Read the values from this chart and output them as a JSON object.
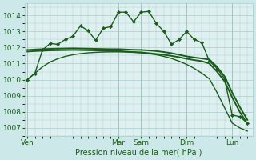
{
  "background_color": "#cce8e8",
  "plot_bg_color": "#dff0f0",
  "grid_color": "#aacccc",
  "line_color": "#1a5c1a",
  "title": "Pression niveau de la mer( hPa )",
  "tick_fontsize": 6.5,
  "xlabel_fontsize": 7,
  "ylim": [
    1006.5,
    1014.75
  ],
  "yticks": [
    1007,
    1008,
    1009,
    1010,
    1011,
    1012,
    1013,
    1014
  ],
  "xlim": [
    -0.3,
    29.7
  ],
  "day_labels": [
    "Ven",
    "Mar",
    "Sam",
    "Dim",
    "Lun"
  ],
  "day_positions": [
    0,
    12,
    15,
    21,
    27
  ],
  "vline_color": "#667766",
  "series": [
    {
      "x": [
        0,
        1,
        2,
        3,
        4,
        5,
        6,
        7,
        8,
        9,
        10,
        11,
        12,
        13,
        14,
        15,
        16,
        17,
        18,
        19,
        20,
        21,
        22,
        23,
        24,
        25,
        26,
        27,
        28,
        29
      ],
      "y": [
        1010.0,
        1010.4,
        1011.85,
        1012.25,
        1012.2,
        1012.5,
        1012.7,
        1013.35,
        1013.05,
        1012.45,
        1013.2,
        1013.3,
        1014.2,
        1014.2,
        1013.6,
        1014.2,
        1014.25,
        1013.5,
        1013.0,
        1012.2,
        1012.5,
        1013.0,
        1012.5,
        1012.3,
        1011.15,
        1010.7,
        1010.05,
        1007.8,
        1007.7,
        1007.3
      ],
      "marker": "D",
      "markersize": 2.2,
      "lw": 1.0
    },
    {
      "x": [
        0,
        1,
        2,
        3,
        4,
        5,
        6,
        7,
        8,
        9,
        10,
        11,
        12,
        13,
        14,
        15,
        16,
        17,
        18,
        19,
        20,
        21,
        22,
        23,
        24,
        25,
        26,
        27,
        28,
        29
      ],
      "y": [
        1011.85,
        1011.88,
        1011.9,
        1011.92,
        1011.93,
        1011.94,
        1011.95,
        1011.94,
        1011.93,
        1011.92,
        1011.91,
        1011.9,
        1011.9,
        1011.88,
        1011.86,
        1011.85,
        1011.82,
        1011.78,
        1011.72,
        1011.65,
        1011.55,
        1011.45,
        1011.38,
        1011.32,
        1011.25,
        1010.8,
        1010.2,
        1009.2,
        1008.3,
        1007.5
      ],
      "marker": null,
      "markersize": 0,
      "lw": 1.4
    },
    {
      "x": [
        0,
        1,
        2,
        3,
        4,
        5,
        6,
        7,
        8,
        9,
        10,
        11,
        12,
        13,
        14,
        15,
        16,
        17,
        18,
        19,
        20,
        21,
        22,
        23,
        24,
        25,
        26,
        27,
        28,
        29
      ],
      "y": [
        1011.75,
        1011.78,
        1011.8,
        1011.82,
        1011.83,
        1011.84,
        1011.85,
        1011.84,
        1011.83,
        1011.82,
        1011.8,
        1011.78,
        1011.78,
        1011.75,
        1011.72,
        1011.7,
        1011.65,
        1011.6,
        1011.55,
        1011.48,
        1011.4,
        1011.3,
        1011.22,
        1011.15,
        1011.0,
        1010.5,
        1009.9,
        1008.9,
        1008.0,
        1007.25
      ],
      "marker": null,
      "markersize": 0,
      "lw": 1.4
    },
    {
      "x": [
        0,
        1,
        2,
        3,
        4,
        5,
        6,
        7,
        8,
        9,
        10,
        11,
        12,
        13,
        14,
        15,
        16,
        17,
        18,
        19,
        20,
        21,
        22,
        23,
        24,
        25,
        26,
        27,
        28,
        29
      ],
      "y": [
        1010.0,
        1010.4,
        1010.8,
        1011.1,
        1011.3,
        1011.45,
        1011.55,
        1011.62,
        1011.67,
        1011.7,
        1011.72,
        1011.73,
        1011.73,
        1011.72,
        1011.7,
        1011.67,
        1011.62,
        1011.55,
        1011.45,
        1011.32,
        1011.15,
        1010.95,
        1010.7,
        1010.4,
        1010.05,
        1009.2,
        1008.25,
        1007.3,
        1007.0,
        1006.8
      ],
      "marker": null,
      "markersize": 0,
      "lw": 1.0
    }
  ]
}
